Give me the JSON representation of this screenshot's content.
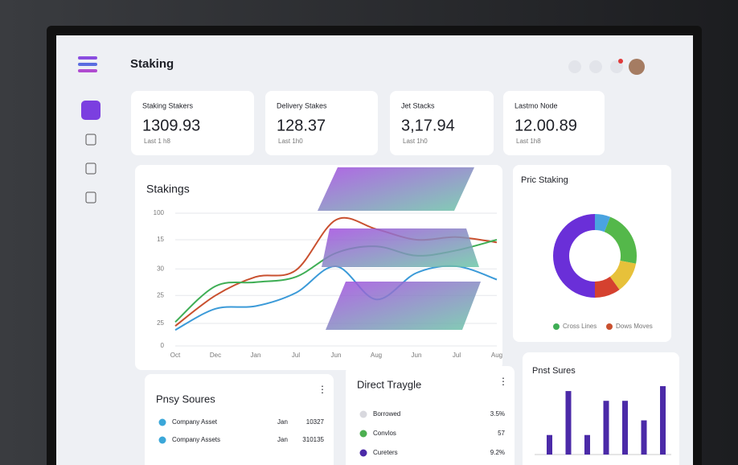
{
  "header": {
    "title": "Staking"
  },
  "cards": [
    {
      "label": "Staking Stakers",
      "value": "1309.93",
      "note": "Last 1 h8"
    },
    {
      "label": "Delivery Stakes",
      "value": "128.37",
      "note": "Last 1h0"
    },
    {
      "label": "Jet Stacks",
      "value": "3,17.94",
      "note": "Last 1h0"
    },
    {
      "label": "Lastmo Node",
      "value": "12.00.89",
      "note": "Last 1h8"
    }
  ],
  "chart_data": [
    {
      "type": "line",
      "title": "Stakings",
      "categories": [
        "Oct",
        "Dec",
        "Jan",
        "Jul",
        "Jun",
        "Aug",
        "Jun",
        "Jul",
        "Aug"
      ],
      "ylim": [
        0,
        100
      ],
      "yticks": [
        0,
        {
          "value": 17,
          "label": "25"
        },
        {
          "value": 38,
          "label": "25"
        },
        {
          "value": 58,
          "label": "30"
        },
        {
          "value": 80,
          "label": "15"
        },
        100
      ],
      "series": [
        {
          "name": "Red",
          "color": "#c9502f",
          "values": [
            15,
            38,
            52,
            57,
            95,
            88,
            80,
            82,
            78
          ]
        },
        {
          "name": "Green",
          "color": "#3fae55",
          "values": [
            18,
            45,
            48,
            52,
            70,
            75,
            68,
            72,
            80
          ]
        },
        {
          "name": "Blue",
          "color": "#3b9ad8",
          "values": [
            12,
            28,
            30,
            40,
            60,
            35,
            55,
            60,
            50
          ]
        }
      ]
    },
    {
      "type": "pie",
      "title": "Pric Staking",
      "values": [
        6,
        22,
        12,
        10,
        50
      ],
      "colors": [
        "#4aa3e0",
        "#54b84a",
        "#e7c13a",
        "#d5412f",
        "#6a2fd8"
      ],
      "legend": [
        {
          "name": "Cross Lines",
          "color": "#3fae55"
        },
        {
          "name": "Dows Moves",
          "color": "#c9502f"
        }
      ]
    },
    {
      "type": "bar",
      "title": "Pnst Sures",
      "color": "#4b2aa8",
      "values": [
        2,
        6.5,
        2,
        5.5,
        5.5,
        3.5,
        7
      ]
    }
  ],
  "lists": [
    {
      "title": "Pnsy Soures",
      "rows": [
        [
          "Company Asset",
          "Jan",
          "10327"
        ],
        [
          "Company Assets",
          "Jan",
          "310135"
        ]
      ],
      "colors": [
        "#3ba7d9",
        "#3ba7d9"
      ]
    },
    {
      "title": "Direct Traygle",
      "rows": [
        [
          "Borrowed",
          "3.5%"
        ],
        [
          "Convlos",
          "57"
        ],
        [
          "Cureters",
          "9.2%"
        ]
      ],
      "colors": [
        "#d8d8de",
        "#4caf50",
        "#4b2aa8"
      ]
    }
  ]
}
